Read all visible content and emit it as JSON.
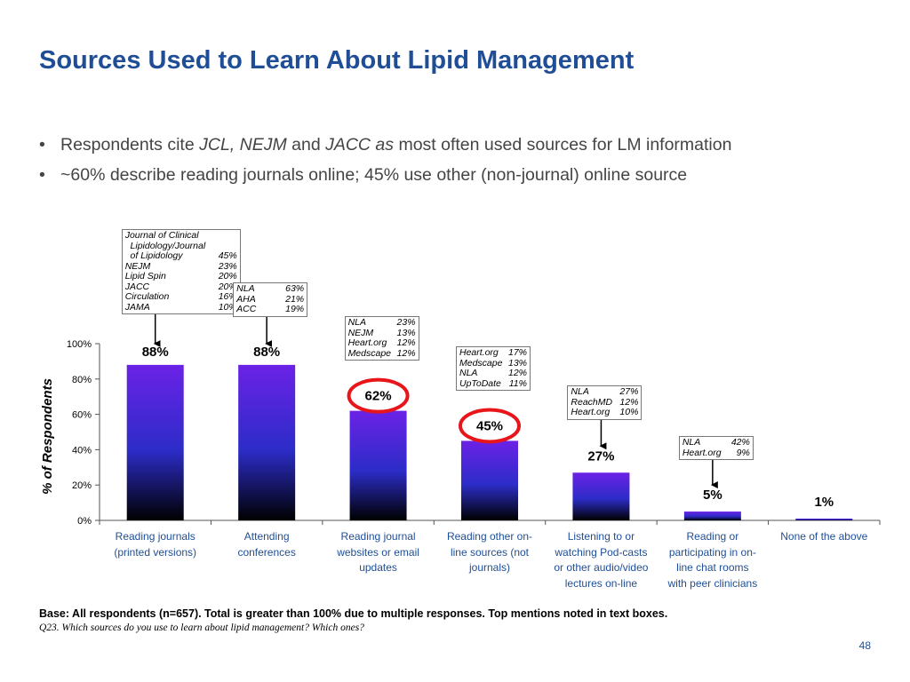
{
  "slide": {
    "title": "Sources Used to Learn About Lipid Management",
    "bullets": [
      [
        {
          "text": "Respondents cite ",
          "italic": false
        },
        {
          "text": "JCL, NEJM",
          "italic": true
        },
        {
          "text": " and ",
          "italic": false
        },
        {
          "text": "JACC as",
          "italic": true
        },
        {
          "text": " most often used sources for LM information",
          "italic": false
        }
      ],
      [
        {
          "text": "~60% describe reading journals online; 45% use other (non-journal) online source",
          "italic": false
        }
      ]
    ],
    "bullet_glyph": "•",
    "footnote_base": "Base: All respondents (n=657).  Total is greater than 100% due to multiple responses. Top mentions noted in text boxes.",
    "footnote_question": "Q23. Which sources do you use to learn about lipid management? Which ones?",
    "page_number": "48"
  },
  "chart_data": {
    "type": "bar",
    "ylabel": "% of Respondents",
    "ylim": [
      0,
      100
    ],
    "yticks": [
      0,
      20,
      40,
      60,
      80,
      100
    ],
    "ytick_labels": [
      "0%",
      "20%",
      "40%",
      "60%",
      "80%",
      "100%"
    ],
    "categories": [
      [
        "Reading journals",
        "(printed versions)"
      ],
      [
        "Attending",
        "conferences"
      ],
      [
        "Reading journal",
        "websites or email",
        "updates"
      ],
      [
        "Reading other on-",
        "line sources (not",
        "journals)"
      ],
      [
        "Listening to or",
        "watching Pod-casts",
        "or other audio/video",
        "lectures on-line"
      ],
      [
        "Reading or",
        "participating in on-",
        "line chat rooms",
        "with peer clinicians"
      ],
      [
        "None of the above"
      ]
    ],
    "values": [
      88,
      88,
      62,
      45,
      27,
      5,
      1
    ],
    "value_labels": [
      "88%",
      "88%",
      "62%",
      "45%",
      "27%",
      "5%",
      "1%"
    ],
    "highlighted": [
      false,
      false,
      true,
      true,
      false,
      false,
      false
    ],
    "colors": {
      "bar_top": "#6b22e6",
      "bar_mid": "#2c2cc8",
      "bar_bottom": "#000000",
      "highlight": "#e8151b",
      "axis": "#555555",
      "title": "#1f4e96"
    },
    "callouts": [
      {
        "bar": 0,
        "rows": [
          [
            "Journal of Clinical",
            ""
          ],
          [
            "  Lipidology/Journal",
            ""
          ],
          [
            "  of Lipidology",
            "45%"
          ],
          [
            "NEJM",
            "23%"
          ],
          [
            "Lipid Spin",
            "20%"
          ],
          [
            "JACC",
            "20%"
          ],
          [
            "Circulation",
            "16%"
          ],
          [
            "JAMA",
            "10%"
          ]
        ]
      },
      {
        "bar": 1,
        "rows": [
          [
            "NLA",
            "63%"
          ],
          [
            "AHA",
            "21%"
          ],
          [
            "ACC",
            "19%"
          ]
        ]
      },
      {
        "bar": 2,
        "rows": [
          [
            "NLA",
            "23%"
          ],
          [
            "NEJM",
            "13%"
          ],
          [
            "Heart.org",
            "12%"
          ],
          [
            "Medscape",
            "12%"
          ]
        ]
      },
      {
        "bar": 3,
        "rows": [
          [
            "Heart.org",
            "17%"
          ],
          [
            "Medscape",
            "13%"
          ],
          [
            "NLA",
            "12%"
          ],
          [
            "UpToDate",
            "11%"
          ]
        ]
      },
      {
        "bar": 4,
        "rows": [
          [
            "NLA",
            "27%"
          ],
          [
            "ReachMD",
            "12%"
          ],
          [
            "Heart.org",
            "10%"
          ]
        ]
      },
      {
        "bar": 5,
        "rows": [
          [
            "NLA",
            "42%"
          ],
          [
            "Heart.org",
            "9%"
          ]
        ]
      }
    ]
  }
}
